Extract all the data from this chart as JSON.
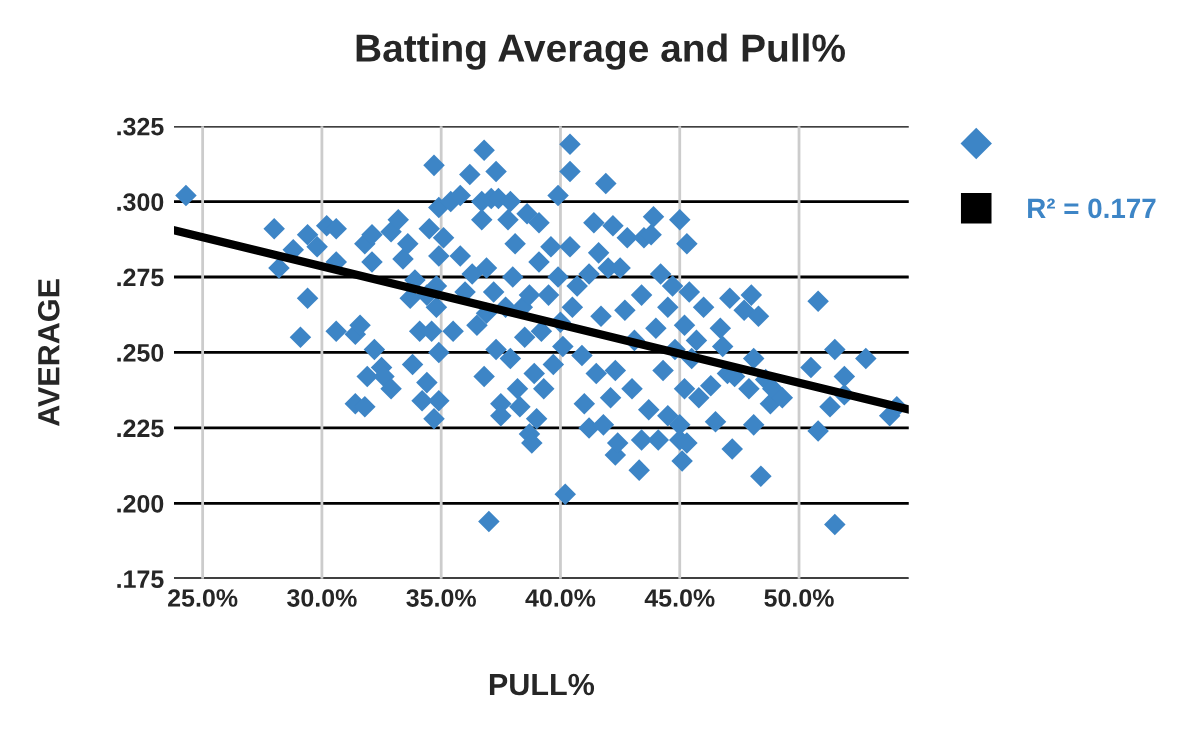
{
  "chart_data": {
    "type": "scatter",
    "title": "Batting Average and Pull%",
    "xlabel": "PULL%",
    "ylabel": "AVERAGE",
    "xlim": [
      23.8,
      54.6
    ],
    "ylim": [
      0.175,
      0.325
    ],
    "xticks": [
      {
        "value": 25,
        "label": "25.0%"
      },
      {
        "value": 30,
        "label": "30.0%"
      },
      {
        "value": 35,
        "label": "35.0%"
      },
      {
        "value": 40,
        "label": "40.0%"
      },
      {
        "value": 45,
        "label": "45.0%"
      },
      {
        "value": 50,
        "label": "50.0%"
      }
    ],
    "yticks": [
      {
        "value": 0.175,
        "label": ".175"
      },
      {
        "value": 0.2,
        "label": ".200"
      },
      {
        "value": 0.225,
        "label": ".225"
      },
      {
        "value": 0.25,
        "label": ".250"
      },
      {
        "value": 0.275,
        "label": ".275"
      },
      {
        "value": 0.3,
        "label": ".300"
      },
      {
        "value": 0.325,
        "label": ".325"
      }
    ],
    "grid": true,
    "legend": "top right",
    "series": [
      {
        "color": "#3d85c6",
        "marker": "diamond",
        "x": [
          24.3,
          28.0,
          28.2,
          28.8,
          29.4,
          29.4,
          29.1,
          29.8,
          30.2,
          30.6,
          30.6,
          30.6,
          31.4,
          31.6,
          31.4,
          31.8,
          31.9,
          31.8,
          32.1,
          32.1,
          32.2,
          32.5,
          32.6,
          32.9,
          32.9,
          33.2,
          33.4,
          33.6,
          33.7,
          33.8,
          33.9,
          34.1,
          34.2,
          34.4,
          34.4,
          34.5,
          34.6,
          34.7,
          34.7,
          34.8,
          34.8,
          34.9,
          34.9,
          34.9,
          34.9,
          35.1,
          35.4,
          35.5,
          35.8,
          35.8,
          36.0,
          36.2,
          36.3,
          36.5,
          36.7,
          36.7,
          36.8,
          36.8,
          36.9,
          36.9,
          37.0,
          37.1,
          37.2,
          37.3,
          37.3,
          37.4,
          37.5,
          37.5,
          37.7,
          37.8,
          37.9,
          37.9,
          38.0,
          38.1,
          38.2,
          38.3,
          38.4,
          38.5,
          38.6,
          38.7,
          38.7,
          38.8,
          38.9,
          39.0,
          39.1,
          39.1,
          39.2,
          39.3,
          39.5,
          39.6,
          39.7,
          39.9,
          39.9,
          40.0,
          40.1,
          40.2,
          40.4,
          40.4,
          40.4,
          40.5,
          40.7,
          40.9,
          41.0,
          41.2,
          41.2,
          41.4,
          41.5,
          41.6,
          41.7,
          41.8,
          41.9,
          42.0,
          42.1,
          42.2,
          42.3,
          42.3,
          42.4,
          42.5,
          42.7,
          42.8,
          43.0,
          43.1,
          43.3,
          43.4,
          43.4,
          43.5,
          43.7,
          43.8,
          43.9,
          44.0,
          44.1,
          44.2,
          44.3,
          44.5,
          44.5,
          44.7,
          44.8,
          45.0,
          45.0,
          45.0,
          45.1,
          45.2,
          45.2,
          45.3,
          45.3,
          45.4,
          45.5,
          45.7,
          45.8,
          46.0,
          46.3,
          46.5,
          46.7,
          46.8,
          47.0,
          47.1,
          47.2,
          47.3,
          47.7,
          47.9,
          48.0,
          48.1,
          48.1,
          48.3,
          48.4,
          48.6,
          48.8,
          48.9,
          49.3,
          50.5,
          50.8,
          50.8,
          51.3,
          51.5,
          51.5,
          51.9,
          51.9,
          52.8,
          53.8,
          54.1
        ],
        "values": [
          0.302,
          0.291,
          0.278,
          0.284,
          0.289,
          0.268,
          0.255,
          0.285,
          0.292,
          0.291,
          0.28,
          0.257,
          0.256,
          0.259,
          0.233,
          0.232,
          0.242,
          0.286,
          0.289,
          0.28,
          0.251,
          0.245,
          0.242,
          0.238,
          0.29,
          0.294,
          0.281,
          0.286,
          0.268,
          0.246,
          0.274,
          0.257,
          0.234,
          0.24,
          0.269,
          0.291,
          0.257,
          0.312,
          0.228,
          0.265,
          0.272,
          0.25,
          0.234,
          0.298,
          0.282,
          0.288,
          0.3,
          0.257,
          0.302,
          0.282,
          0.27,
          0.309,
          0.276,
          0.259,
          0.294,
          0.3,
          0.317,
          0.242,
          0.278,
          0.263,
          0.194,
          0.301,
          0.27,
          0.31,
          0.251,
          0.301,
          0.233,
          0.229,
          0.265,
          0.294,
          0.3,
          0.248,
          0.275,
          0.286,
          0.238,
          0.232,
          0.265,
          0.255,
          0.296,
          0.269,
          0.223,
          0.22,
          0.243,
          0.228,
          0.28,
          0.293,
          0.257,
          0.238,
          0.269,
          0.285,
          0.246,
          0.302,
          0.275,
          0.26,
          0.252,
          0.203,
          0.319,
          0.31,
          0.285,
          0.265,
          0.272,
          0.249,
          0.233,
          0.225,
          0.276,
          0.293,
          0.243,
          0.283,
          0.262,
          0.226,
          0.306,
          0.278,
          0.235,
          0.292,
          0.216,
          0.244,
          0.22,
          0.278,
          0.264,
          0.288,
          0.238,
          0.254,
          0.211,
          0.221,
          0.269,
          0.288,
          0.231,
          0.289,
          0.295,
          0.258,
          0.221,
          0.276,
          0.244,
          0.229,
          0.265,
          0.272,
          0.251,
          0.221,
          0.294,
          0.226,
          0.214,
          0.259,
          0.238,
          0.286,
          0.22,
          0.27,
          0.248,
          0.254,
          0.235,
          0.265,
          0.239,
          0.227,
          0.258,
          0.252,
          0.243,
          0.268,
          0.218,
          0.242,
          0.264,
          0.238,
          0.269,
          0.226,
          0.248,
          0.262,
          0.209,
          0.241,
          0.233,
          0.238,
          0.235,
          0.245,
          0.267,
          0.224,
          0.232,
          0.251,
          0.193,
          0.242,
          0.236,
          0.248,
          0.229,
          0.232
        ]
      },
      {
        "type": "line",
        "marker": "none",
        "name": "R² = 0.177",
        "color": "#000000",
        "x": [
          23.8,
          54.6
        ],
        "values": [
          0.2905,
          0.2311
        ]
      }
    ]
  }
}
